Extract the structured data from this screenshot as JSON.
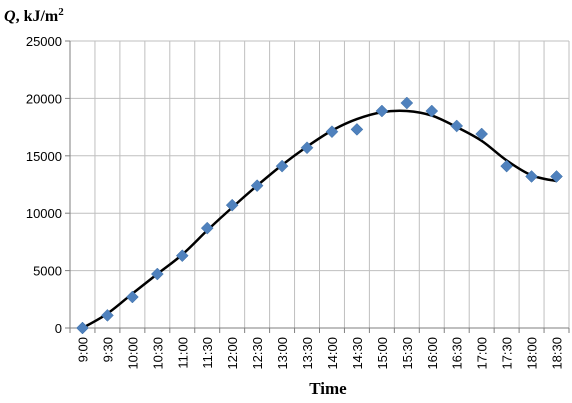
{
  "chart_data": {
    "type": "scatter",
    "ylabel_italic": "Q",
    "ylabel_rest": ", kJ/m",
    "ylabel_sup": "2",
    "xlabel": "Time",
    "categories": [
      "9:00",
      "9:30",
      "10:00",
      "10:30",
      "11:00",
      "11:30",
      "12:00",
      "12:30",
      "13:00",
      "13:30",
      "14:00",
      "14:30",
      "15:00",
      "15:30",
      "16:00",
      "16:30",
      "17:00",
      "17:30",
      "18:00",
      "18:30"
    ],
    "ylim": [
      0,
      25000
    ],
    "yticks": [
      "0",
      "5000",
      "10000",
      "15000",
      "20000",
      "25000"
    ],
    "grid": true,
    "series": [
      {
        "kind": "points",
        "marker": "diamond",
        "color": "#4F81BD",
        "values": [
          0,
          1100,
          2700,
          4700,
          6300,
          8700,
          10700,
          12400,
          14100,
          15700,
          17100,
          17300,
          18900,
          19600,
          18900,
          17600,
          16900,
          14100,
          13200,
          13200
        ]
      },
      {
        "kind": "trendline",
        "color": "#000000",
        "values": [
          0,
          1250,
          3000,
          4700,
          6400,
          8500,
          10500,
          12400,
          14200,
          15800,
          17200,
          18200,
          18800,
          18900,
          18500,
          17500,
          16300,
          14600,
          13300,
          12800
        ]
      }
    ]
  }
}
